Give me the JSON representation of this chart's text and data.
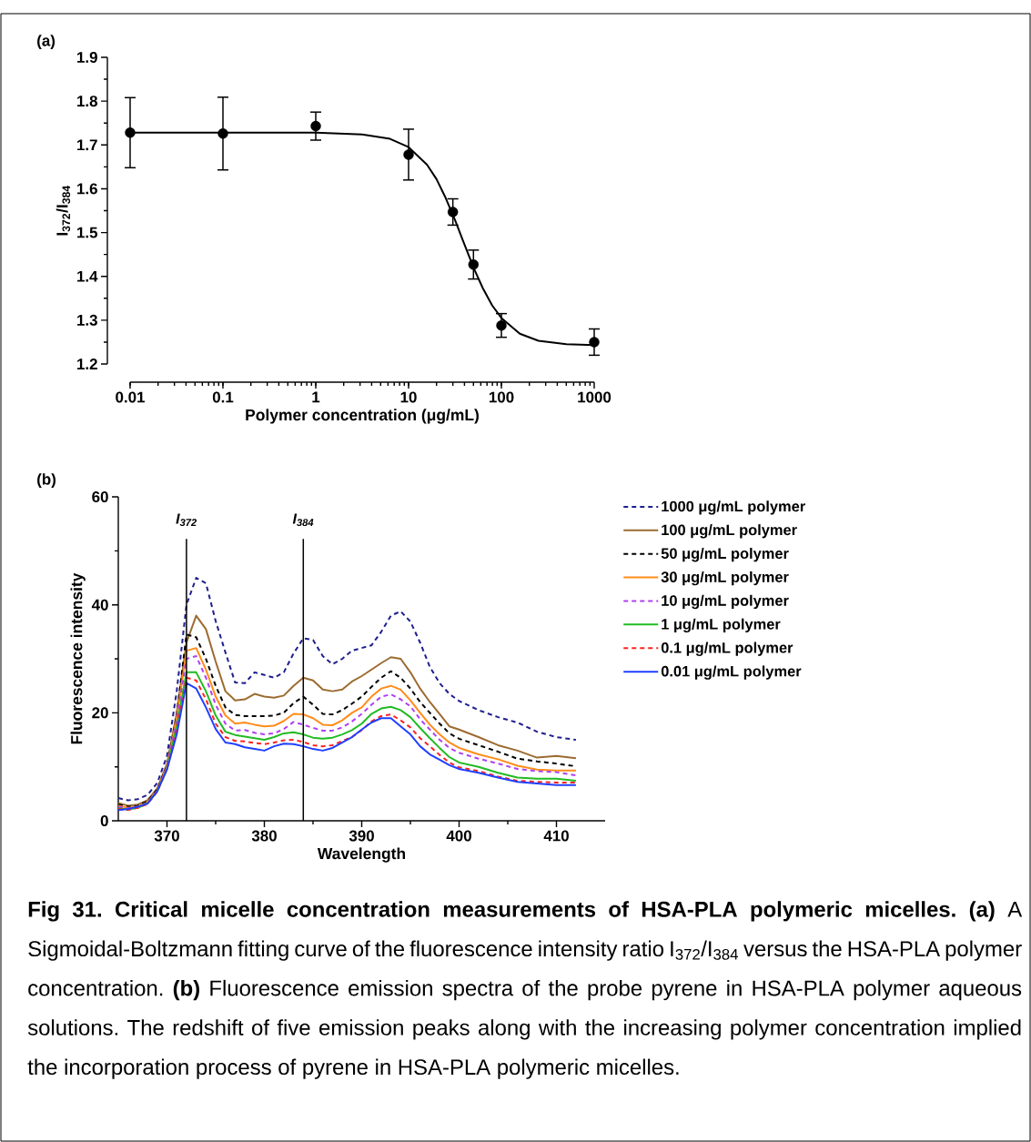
{
  "chart_data": [
    {
      "type": "scatter",
      "title": "(a)",
      "xlabel": "Polymer concentration (μg/mL)",
      "ylabel": "I$_{372}$/I$_{384}$",
      "log": "x",
      "xlim": [
        0.01,
        1000
      ],
      "xticks": [
        0.01,
        0.1,
        1,
        10,
        100,
        1000
      ],
      "ylim": [
        1.2,
        1.9
      ],
      "yticks": [
        1.2,
        1.3,
        1.4,
        1.5,
        1.6,
        1.7,
        1.8,
        1.9
      ],
      "series": [
        {
          "type": "scatter",
          "color": "#000000",
          "marker": "circle",
          "x": [
            0.01,
            0.1,
            1,
            10,
            30,
            50,
            100,
            1000
          ],
          "values": [
            1.728,
            1.726,
            1.743,
            1.678,
            1.547,
            1.427,
            1.288,
            1.25
          ],
          "errors": [
            0.08,
            0.083,
            0.032,
            0.058,
            0.03,
            0.033,
            0.027,
            0.03
          ]
        },
        {
          "type": "line",
          "color": "#000000",
          "x": [
            0.01,
            0.1,
            1,
            3.16,
            6.31,
            10,
            15.8,
            20,
            25.1,
            31.6,
            38,
            44.7,
            50.1,
            63.1,
            79.4,
            100,
            158,
            251,
            501,
            1000
          ],
          "values": [
            1.728,
            1.728,
            1.728,
            1.724,
            1.714,
            1.695,
            1.655,
            1.622,
            1.579,
            1.529,
            1.485,
            1.447,
            1.42,
            1.373,
            1.334,
            1.305,
            1.269,
            1.253,
            1.245,
            1.243
          ]
        }
      ]
    },
    {
      "type": "line",
      "title": "(b)",
      "xlabel": "Wavelength",
      "ylabel": "Fluorescence intensity",
      "legend": "right",
      "xlim": [
        365,
        415
      ],
      "xticks": [
        370,
        380,
        390,
        400,
        410
      ],
      "ylim": [
        0,
        60
      ],
      "yticks": [
        0,
        20,
        40,
        60
      ],
      "x": [
        365,
        366,
        367,
        368,
        369,
        370,
        371,
        372,
        373,
        374,
        375,
        376,
        377,
        378,
        379,
        380,
        381,
        382,
        383,
        384,
        385,
        386,
        387,
        388,
        389,
        390,
        391,
        392,
        393,
        394,
        395,
        396,
        397,
        398,
        399,
        400,
        402,
        404,
        406,
        408,
        410,
        412
      ],
      "ref_lines": [
        {
          "axis": "x",
          "value": 372,
          "label": "I$_{372}$"
        },
        {
          "axis": "x",
          "value": 384,
          "label": "I$_{384}$"
        }
      ],
      "series": [
        {
          "name": "1000 μg/mL polymer",
          "color": "#1f1f8f",
          "line_style": "dashed",
          "values": [
            4.2,
            3.8,
            4.0,
            4.8,
            7.0,
            12.0,
            24.0,
            40.0,
            45.0,
            44.0,
            37.0,
            31.2,
            25.6,
            25.5,
            27.5,
            27.0,
            26.5,
            27.5,
            31.0,
            33.8,
            33.5,
            30.5,
            29.0,
            30.0,
            31.5,
            32.0,
            32.5,
            35.0,
            38.0,
            38.8,
            36.9,
            33.0,
            28.5,
            25.5,
            23.5,
            22.2,
            20.5,
            19.2,
            18.2,
            16.5,
            15.5,
            15.0
          ]
        },
        {
          "name": "100 μg/mL polymer",
          "color": "#9c6b30",
          "line_style": "solid",
          "values": [
            3.3,
            2.8,
            3.0,
            3.8,
            6.0,
            10.5,
            20.0,
            33.0,
            38.0,
            35.5,
            29.5,
            24.0,
            22.3,
            22.5,
            23.5,
            23.0,
            22.8,
            23.2,
            25.0,
            26.5,
            26.0,
            24.3,
            24.0,
            24.3,
            25.8,
            26.8,
            28.0,
            29.2,
            30.3,
            30.0,
            27.5,
            24.5,
            22.0,
            19.8,
            17.5,
            16.9,
            15.5,
            14.0,
            13.0,
            11.7,
            12.0,
            11.6
          ]
        },
        {
          "name": "50 μg/mL polymer",
          "color": "#000000",
          "line_style": "dashed",
          "values": [
            3.0,
            2.6,
            2.8,
            3.6,
            5.8,
            10.2,
            19.5,
            34.5,
            34.0,
            30.0,
            25.0,
            21.0,
            19.6,
            19.4,
            19.4,
            19.4,
            19.5,
            20.0,
            21.8,
            23.0,
            21.5,
            19.8,
            19.7,
            20.5,
            21.7,
            23.0,
            24.8,
            26.5,
            27.7,
            26.5,
            24.5,
            22.0,
            20.0,
            18.0,
            16.2,
            15.2,
            14.0,
            12.8,
            11.5,
            11.0,
            10.6,
            10.1
          ]
        },
        {
          "name": "30 μg/mL polymer",
          "color": "#ff8c1a",
          "line_style": "solid",
          "values": [
            2.8,
            2.4,
            2.6,
            3.4,
            5.6,
            10.0,
            19.0,
            31.5,
            32.0,
            28.0,
            23.0,
            19.5,
            18.0,
            18.2,
            17.8,
            17.5,
            17.6,
            18.5,
            19.8,
            19.7,
            19.0,
            17.8,
            17.7,
            18.6,
            20.0,
            21.0,
            23.0,
            24.5,
            25.0,
            24.3,
            22.3,
            20.0,
            17.8,
            16.0,
            14.5,
            13.5,
            12.3,
            11.4,
            10.2,
            9.5,
            9.3,
            9.3
          ]
        },
        {
          "name": "10 μg/mL polymer",
          "color": "#b040f0",
          "line_style": "dashed",
          "values": [
            2.6,
            2.3,
            2.5,
            3.3,
            5.5,
            9.8,
            18.5,
            30.0,
            30.5,
            26.5,
            21.5,
            18.0,
            16.7,
            16.8,
            16.3,
            16.0,
            16.2,
            17.0,
            18.3,
            17.8,
            17.2,
            16.7,
            16.7,
            17.3,
            18.4,
            19.8,
            21.5,
            23.0,
            23.4,
            22.5,
            21.2,
            18.8,
            16.9,
            15.0,
            13.5,
            12.6,
            11.5,
            10.6,
            9.6,
            9.2,
            9.0,
            8.4
          ]
        },
        {
          "name": "1 μg/mL polymer",
          "color": "#22bb22",
          "line_style": "solid",
          "values": [
            2.3,
            2.1,
            2.4,
            3.2,
            5.4,
            9.6,
            17.5,
            27.5,
            27.5,
            24.0,
            19.5,
            16.5,
            15.9,
            15.6,
            15.3,
            15.0,
            15.5,
            16.2,
            16.4,
            16.0,
            15.4,
            15.2,
            15.4,
            16.0,
            16.8,
            18.0,
            19.8,
            20.8,
            21.1,
            20.5,
            19.2,
            17.2,
            15.3,
            13.5,
            11.8,
            10.8,
            10.0,
            8.9,
            8.0,
            7.8,
            7.8,
            7.4
          ]
        },
        {
          "name": "0.1 μg/mL polymer",
          "color": "#ff2020",
          "line_style": "dashed",
          "values": [
            2.2,
            2.0,
            2.4,
            3.1,
            5.4,
            9.6,
            17.0,
            26.5,
            26.0,
            22.5,
            18.0,
            15.5,
            14.8,
            14.7,
            14.4,
            14.2,
            14.5,
            14.9,
            15.0,
            14.6,
            14.0,
            13.8,
            14.0,
            14.8,
            15.5,
            16.8,
            18.4,
            19.4,
            19.7,
            18.6,
            17.3,
            15.3,
            13.8,
            12.2,
            10.8,
            9.9,
            9.2,
            8.2,
            7.4,
            7.2,
            7.1,
            7.1
          ]
        },
        {
          "name": "0.01 μg/mL polymer",
          "color": "#1f3fff",
          "line_style": "solid",
          "values": [
            2.0,
            2.2,
            2.6,
            3.2,
            5.5,
            9.5,
            16.0,
            25.5,
            24.5,
            21.0,
            17.0,
            14.5,
            14.2,
            13.6,
            13.3,
            13.0,
            13.8,
            14.3,
            14.2,
            13.8,
            13.3,
            13.0,
            13.5,
            14.5,
            15.5,
            16.9,
            18.2,
            19.0,
            19.0,
            17.5,
            16.0,
            13.8,
            12.3,
            11.3,
            10.3,
            9.6,
            8.9,
            8.0,
            7.2,
            6.9,
            6.6,
            6.6
          ]
        }
      ],
      "annotations": [
        "**Fig 31. Critical micelle concentration measurements of HSA-PLA polymeric micelles.** **(a)** A Sigmoidal-Boltzmann fitting curve of the fluorescence intensity ratio I$_{372}$/I$_{384}$ versus the HSA-PLA polymer concentration. **(b)** Fluorescence emission spectra of the probe pyrene in HSA-PLA polymer aqueous solutions. The redshift of five emission peaks along with the increasing polymer concentration implied the incorporation process of pyrene in HSA-PLA polymeric micelles."
      ]
    }
  ]
}
